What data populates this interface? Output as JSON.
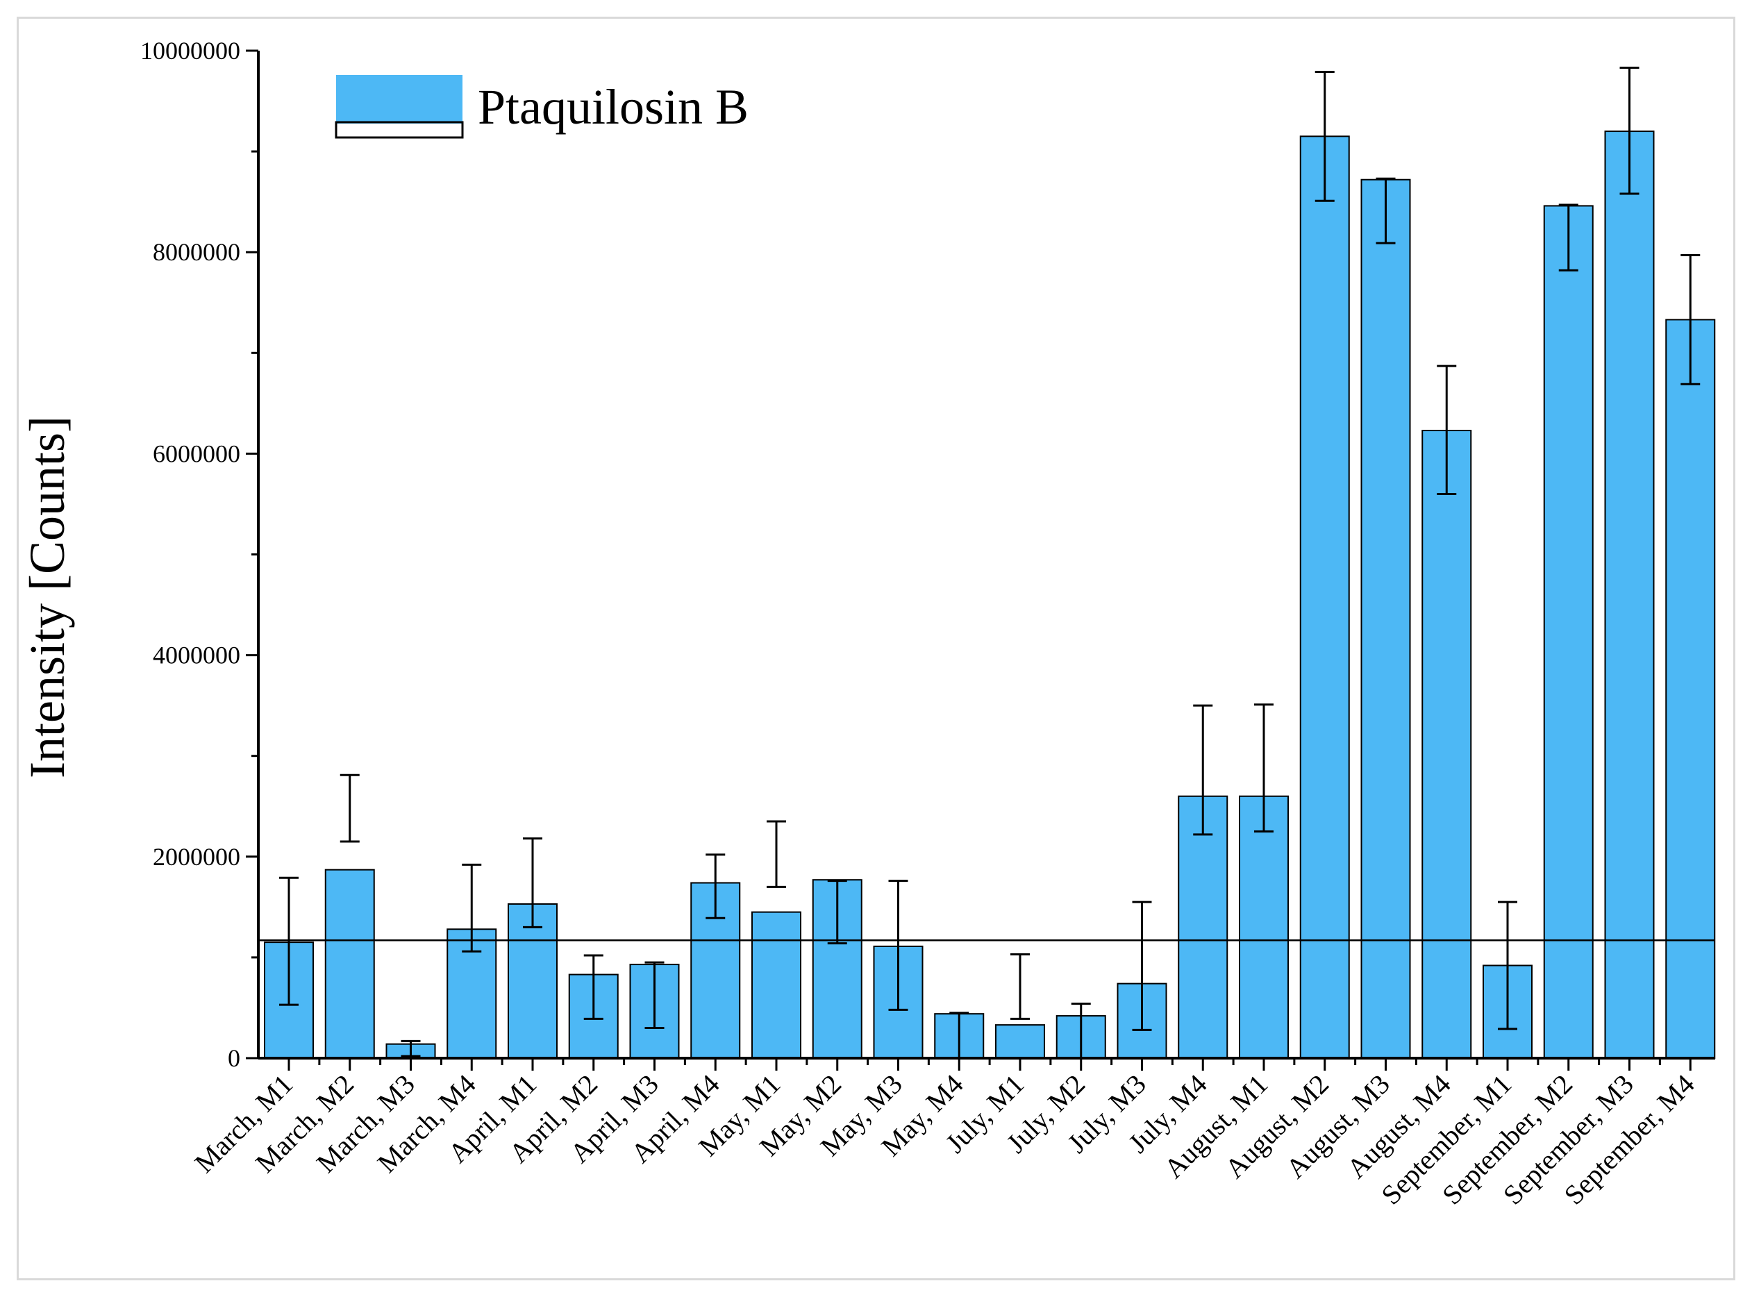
{
  "chart_data": {
    "type": "bar",
    "title": "",
    "xlabel": "",
    "ylabel": "Intensity [Counts]",
    "ylim": [
      0,
      10000000
    ],
    "yticks": [
      0,
      2000000,
      4000000,
      6000000,
      8000000,
      10000000
    ],
    "ytick_labels": [
      "0",
      "2000000",
      "4000000",
      "6000000",
      "8000000",
      "10000000"
    ],
    "grid": false,
    "legend": {
      "position": "top-left",
      "entries": [
        "Ptaquilosin B"
      ]
    },
    "reference_line": 1170000,
    "categories": [
      "March, M1",
      "March, M2",
      "March, M3",
      "March, M4",
      "April, M1",
      "April, M2",
      "April, M3",
      "April, M4",
      "May, M1",
      "May, M2",
      "May, M3",
      "May, M4",
      "July, M1",
      "July, M2",
      "July, M3",
      "July, M4",
      "August, M1",
      "August, M2",
      "August, M3",
      "August, M4",
      "September, M1",
      "September, M2",
      "September, M3",
      "September, M4"
    ],
    "series": [
      {
        "name": "Ptaquilosin B",
        "color": "#4db8f5",
        "values": [
          1150000,
          1870000,
          140000,
          1280000,
          1530000,
          830000,
          930000,
          1740000,
          1450000,
          1770000,
          1110000,
          440000,
          330000,
          420000,
          740000,
          2600000,
          2600000,
          9150000,
          8720000,
          6230000,
          920000,
          8460000,
          9200000,
          7330000
        ],
        "error_upper": [
          1790000,
          2810000,
          170000,
          1920000,
          2180000,
          1020000,
          950000,
          2020000,
          2350000,
          1760000,
          1760000,
          450000,
          1030000,
          540000,
          1550000,
          3500000,
          3510000,
          9790000,
          8730000,
          6870000,
          1550000,
          8470000,
          9830000,
          7970000
        ],
        "error_lower": [
          530000,
          2150000,
          20000,
          1060000,
          1300000,
          390000,
          300000,
          1390000,
          1700000,
          1140000,
          480000,
          0,
          390000,
          0,
          280000,
          2220000,
          2250000,
          8510000,
          8090000,
          5600000,
          290000,
          7820000,
          8580000,
          6690000
        ]
      }
    ]
  },
  "colors": {
    "bar": "#4db8f5",
    "bar_light": "#9ad6f7",
    "axis": "#000000"
  }
}
